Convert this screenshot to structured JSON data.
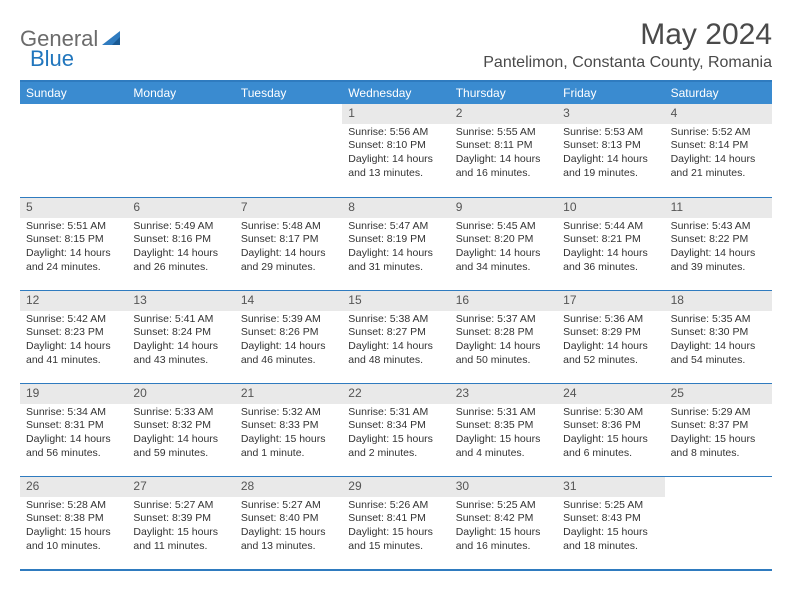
{
  "logo": {
    "general": "General",
    "blue": "Blue"
  },
  "title": "May 2024",
  "location": "Pantelimon, Constanta County, Romania",
  "colors": {
    "header_bg": "#3a8bd0",
    "border": "#2f7bbf",
    "daynum_bg": "#e9e9e9",
    "text": "#333333",
    "title_text": "#4a4a4a",
    "logo_gray": "#6b6b6b",
    "logo_blue": "#2176bd"
  },
  "weekdays": [
    "Sunday",
    "Monday",
    "Tuesday",
    "Wednesday",
    "Thursday",
    "Friday",
    "Saturday"
  ],
  "weeks": [
    [
      {
        "n": "",
        "lines": [
          "",
          "",
          "",
          ""
        ]
      },
      {
        "n": "",
        "lines": [
          "",
          "",
          "",
          ""
        ]
      },
      {
        "n": "",
        "lines": [
          "",
          "",
          "",
          ""
        ]
      },
      {
        "n": "1",
        "lines": [
          "Sunrise: 5:56 AM",
          "Sunset: 8:10 PM",
          "Daylight: 14 hours",
          "and 13 minutes."
        ]
      },
      {
        "n": "2",
        "lines": [
          "Sunrise: 5:55 AM",
          "Sunset: 8:11 PM",
          "Daylight: 14 hours",
          "and 16 minutes."
        ]
      },
      {
        "n": "3",
        "lines": [
          "Sunrise: 5:53 AM",
          "Sunset: 8:13 PM",
          "Daylight: 14 hours",
          "and 19 minutes."
        ]
      },
      {
        "n": "4",
        "lines": [
          "Sunrise: 5:52 AM",
          "Sunset: 8:14 PM",
          "Daylight: 14 hours",
          "and 21 minutes."
        ]
      }
    ],
    [
      {
        "n": "5",
        "lines": [
          "Sunrise: 5:51 AM",
          "Sunset: 8:15 PM",
          "Daylight: 14 hours",
          "and 24 minutes."
        ]
      },
      {
        "n": "6",
        "lines": [
          "Sunrise: 5:49 AM",
          "Sunset: 8:16 PM",
          "Daylight: 14 hours",
          "and 26 minutes."
        ]
      },
      {
        "n": "7",
        "lines": [
          "Sunrise: 5:48 AM",
          "Sunset: 8:17 PM",
          "Daylight: 14 hours",
          "and 29 minutes."
        ]
      },
      {
        "n": "8",
        "lines": [
          "Sunrise: 5:47 AM",
          "Sunset: 8:19 PM",
          "Daylight: 14 hours",
          "and 31 minutes."
        ]
      },
      {
        "n": "9",
        "lines": [
          "Sunrise: 5:45 AM",
          "Sunset: 8:20 PM",
          "Daylight: 14 hours",
          "and 34 minutes."
        ]
      },
      {
        "n": "10",
        "lines": [
          "Sunrise: 5:44 AM",
          "Sunset: 8:21 PM",
          "Daylight: 14 hours",
          "and 36 minutes."
        ]
      },
      {
        "n": "11",
        "lines": [
          "Sunrise: 5:43 AM",
          "Sunset: 8:22 PM",
          "Daylight: 14 hours",
          "and 39 minutes."
        ]
      }
    ],
    [
      {
        "n": "12",
        "lines": [
          "Sunrise: 5:42 AM",
          "Sunset: 8:23 PM",
          "Daylight: 14 hours",
          "and 41 minutes."
        ]
      },
      {
        "n": "13",
        "lines": [
          "Sunrise: 5:41 AM",
          "Sunset: 8:24 PM",
          "Daylight: 14 hours",
          "and 43 minutes."
        ]
      },
      {
        "n": "14",
        "lines": [
          "Sunrise: 5:39 AM",
          "Sunset: 8:26 PM",
          "Daylight: 14 hours",
          "and 46 minutes."
        ]
      },
      {
        "n": "15",
        "lines": [
          "Sunrise: 5:38 AM",
          "Sunset: 8:27 PM",
          "Daylight: 14 hours",
          "and 48 minutes."
        ]
      },
      {
        "n": "16",
        "lines": [
          "Sunrise: 5:37 AM",
          "Sunset: 8:28 PM",
          "Daylight: 14 hours",
          "and 50 minutes."
        ]
      },
      {
        "n": "17",
        "lines": [
          "Sunrise: 5:36 AM",
          "Sunset: 8:29 PM",
          "Daylight: 14 hours",
          "and 52 minutes."
        ]
      },
      {
        "n": "18",
        "lines": [
          "Sunrise: 5:35 AM",
          "Sunset: 8:30 PM",
          "Daylight: 14 hours",
          "and 54 minutes."
        ]
      }
    ],
    [
      {
        "n": "19",
        "lines": [
          "Sunrise: 5:34 AM",
          "Sunset: 8:31 PM",
          "Daylight: 14 hours",
          "and 56 minutes."
        ]
      },
      {
        "n": "20",
        "lines": [
          "Sunrise: 5:33 AM",
          "Sunset: 8:32 PM",
          "Daylight: 14 hours",
          "and 59 minutes."
        ]
      },
      {
        "n": "21",
        "lines": [
          "Sunrise: 5:32 AM",
          "Sunset: 8:33 PM",
          "Daylight: 15 hours",
          "and 1 minute."
        ]
      },
      {
        "n": "22",
        "lines": [
          "Sunrise: 5:31 AM",
          "Sunset: 8:34 PM",
          "Daylight: 15 hours",
          "and 2 minutes."
        ]
      },
      {
        "n": "23",
        "lines": [
          "Sunrise: 5:31 AM",
          "Sunset: 8:35 PM",
          "Daylight: 15 hours",
          "and 4 minutes."
        ]
      },
      {
        "n": "24",
        "lines": [
          "Sunrise: 5:30 AM",
          "Sunset: 8:36 PM",
          "Daylight: 15 hours",
          "and 6 minutes."
        ]
      },
      {
        "n": "25",
        "lines": [
          "Sunrise: 5:29 AM",
          "Sunset: 8:37 PM",
          "Daylight: 15 hours",
          "and 8 minutes."
        ]
      }
    ],
    [
      {
        "n": "26",
        "lines": [
          "Sunrise: 5:28 AM",
          "Sunset: 8:38 PM",
          "Daylight: 15 hours",
          "and 10 minutes."
        ]
      },
      {
        "n": "27",
        "lines": [
          "Sunrise: 5:27 AM",
          "Sunset: 8:39 PM",
          "Daylight: 15 hours",
          "and 11 minutes."
        ]
      },
      {
        "n": "28",
        "lines": [
          "Sunrise: 5:27 AM",
          "Sunset: 8:40 PM",
          "Daylight: 15 hours",
          "and 13 minutes."
        ]
      },
      {
        "n": "29",
        "lines": [
          "Sunrise: 5:26 AM",
          "Sunset: 8:41 PM",
          "Daylight: 15 hours",
          "and 15 minutes."
        ]
      },
      {
        "n": "30",
        "lines": [
          "Sunrise: 5:25 AM",
          "Sunset: 8:42 PM",
          "Daylight: 15 hours",
          "and 16 minutes."
        ]
      },
      {
        "n": "31",
        "lines": [
          "Sunrise: 5:25 AM",
          "Sunset: 8:43 PM",
          "Daylight: 15 hours",
          "and 18 minutes."
        ]
      },
      {
        "n": "",
        "lines": [
          "",
          "",
          "",
          ""
        ]
      }
    ]
  ]
}
